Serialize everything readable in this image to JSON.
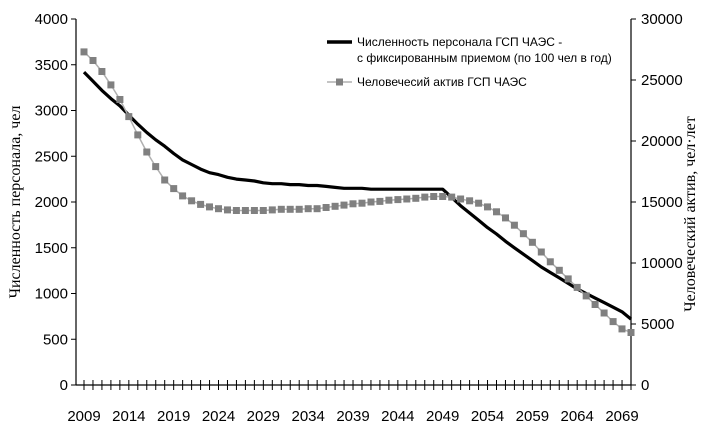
{
  "chart_data": {
    "type": "line",
    "title": "",
    "ylabel_left": "Численность персонала, чел",
    "ylabel_right": "Человеческий актив, чел·лет",
    "ylim_left": [
      0,
      4000
    ],
    "ylim_right": [
      0,
      30000
    ],
    "y_ticks_left": [
      "0",
      "500",
      "1000",
      "1500",
      "2000",
      "2500",
      "3000",
      "3500",
      "4000"
    ],
    "y_ticks_right": [
      "0",
      "5000",
      "10000",
      "15000",
      "20000",
      "25000",
      "30000"
    ],
    "x_tick_labels": [
      "2009",
      "2014",
      "2019",
      "2024",
      "2029",
      "2034",
      "2039",
      "2044",
      "2049",
      "2054",
      "2059",
      "2064",
      "2069"
    ],
    "x_range": [
      2009,
      2070
    ],
    "grid": false,
    "legend_position": "top-right",
    "series": [
      {
        "name_line1": "Численность персонала ГСП ЧАЭС -",
        "name_line2": "с фиксированным приемом (по 100 чел в год)",
        "axis": "left",
        "color": "#000000",
        "x": [
          2009,
          2010,
          2011,
          2012,
          2013,
          2014,
          2015,
          2016,
          2017,
          2018,
          2019,
          2020,
          2021,
          2022,
          2023,
          2024,
          2025,
          2026,
          2027,
          2028,
          2029,
          2030,
          2031,
          2032,
          2033,
          2034,
          2035,
          2036,
          2037,
          2038,
          2039,
          2040,
          2041,
          2042,
          2043,
          2044,
          2045,
          2046,
          2047,
          2048,
          2049,
          2050,
          2051,
          2052,
          2053,
          2054,
          2055,
          2056,
          2057,
          2058,
          2059,
          2060,
          2061,
          2062,
          2063,
          2064,
          2065,
          2066,
          2067,
          2068,
          2069,
          2070
        ],
        "values": [
          3420,
          3320,
          3220,
          3130,
          3050,
          2950,
          2850,
          2760,
          2680,
          2610,
          2530,
          2460,
          2410,
          2360,
          2320,
          2300,
          2270,
          2250,
          2240,
          2230,
          2210,
          2200,
          2200,
          2190,
          2190,
          2180,
          2180,
          2170,
          2160,
          2150,
          2150,
          2150,
          2140,
          2140,
          2140,
          2140,
          2140,
          2140,
          2140,
          2140,
          2140,
          2050,
          1960,
          1880,
          1800,
          1720,
          1650,
          1570,
          1500,
          1430,
          1360,
          1290,
          1230,
          1170,
          1110,
          1050,
          1000,
          950,
          900,
          850,
          800,
          720
        ]
      },
      {
        "name": "Человечесий актив ГСП ЧАЭС",
        "axis": "right",
        "color": "#808080",
        "x": [
          2009,
          2010,
          2011,
          2012,
          2013,
          2014,
          2015,
          2016,
          2017,
          2018,
          2019,
          2020,
          2021,
          2022,
          2023,
          2024,
          2025,
          2026,
          2027,
          2028,
          2029,
          2030,
          2031,
          2032,
          2033,
          2034,
          2035,
          2036,
          2037,
          2038,
          2039,
          2040,
          2041,
          2042,
          2043,
          2044,
          2045,
          2046,
          2047,
          2048,
          2049,
          2050,
          2051,
          2052,
          2053,
          2054,
          2055,
          2056,
          2057,
          2058,
          2059,
          2060,
          2061,
          2062,
          2063,
          2064,
          2065,
          2066,
          2067,
          2068,
          2069,
          2070
        ],
        "values": [
          27300,
          26600,
          25700,
          24600,
          23400,
          22000,
          20500,
          19100,
          17900,
          16800,
          16100,
          15500,
          15100,
          14800,
          14600,
          14450,
          14350,
          14300,
          14300,
          14300,
          14300,
          14350,
          14400,
          14400,
          14400,
          14450,
          14450,
          14550,
          14650,
          14750,
          14850,
          14900,
          15000,
          15050,
          15150,
          15200,
          15250,
          15300,
          15400,
          15450,
          15450,
          15400,
          15250,
          15100,
          14900,
          14600,
          14200,
          13700,
          13100,
          12400,
          11700,
          10900,
          10100,
          9400,
          8700,
          8000,
          7300,
          6600,
          5900,
          5200,
          4600,
          4300
        ]
      }
    ]
  }
}
